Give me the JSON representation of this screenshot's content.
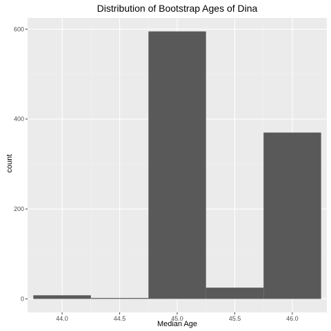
{
  "chart_data": {
    "type": "bar",
    "title": "Distribution of Bootstrap Ages of Dina",
    "xlabel": "Median Age",
    "ylabel": "count",
    "bins": [
      {
        "x_min": 43.75,
        "x_max": 44.25,
        "count": 8
      },
      {
        "x_min": 44.25,
        "x_max": 44.75,
        "count": 2
      },
      {
        "x_min": 44.75,
        "x_max": 45.25,
        "count": 595
      },
      {
        "x_min": 45.25,
        "x_max": 45.75,
        "count": 25
      },
      {
        "x_min": 45.75,
        "x_max": 46.25,
        "count": 370
      }
    ],
    "x_ticks": [
      {
        "value": 44.0,
        "label": "44.0"
      },
      {
        "value": 44.5,
        "label": "44.5"
      },
      {
        "value": 45.0,
        "label": "45.0"
      },
      {
        "value": 45.5,
        "label": "45.5"
      },
      {
        "value": 46.0,
        "label": "46.0"
      }
    ],
    "y_ticks": [
      {
        "value": 0,
        "label": "0"
      },
      {
        "value": 200,
        "label": "200"
      },
      {
        "value": 400,
        "label": "400"
      },
      {
        "value": 600,
        "label": "600"
      }
    ],
    "xlim": [
      43.7,
      46.3
    ],
    "ylim": [
      -30,
      625
    ],
    "grid": true,
    "colors": {
      "bar": "#595959",
      "panel_background": "#ebebeb",
      "grid_major": "#ffffff",
      "grid_minor": "#f2f2f2",
      "tick_label": "#4d4d4d"
    }
  }
}
